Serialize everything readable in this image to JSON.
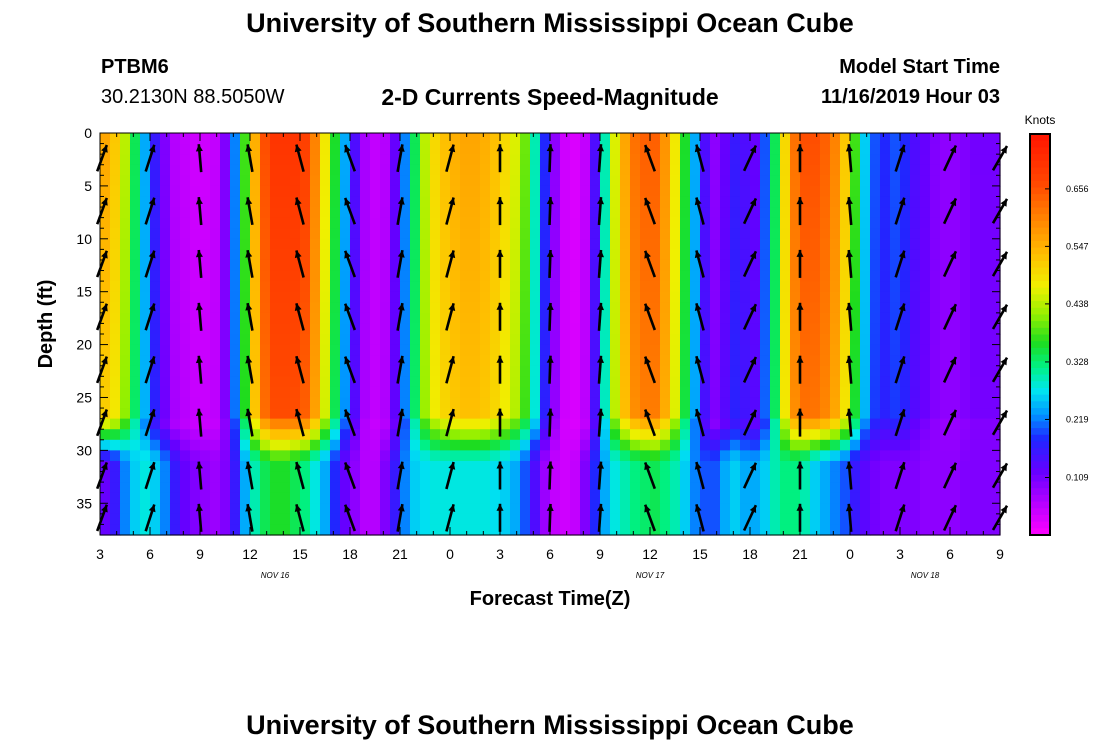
{
  "header": {
    "title": "University of Southern Mississippi Ocean Cube",
    "station": "PTBM6",
    "coords": "30.2130N 88.5050W",
    "subtitle": "2-D Currents Speed-Magnitude",
    "model_label": "Model Start Time",
    "model_time": "11/16/2019 Hour 03"
  },
  "footer": {
    "title": "University of Southern Mississippi Ocean Cube"
  },
  "chart_data": {
    "type": "heatmap",
    "title": "2-D Currents Speed-Magnitude",
    "xlabel": "Forecast Time(Z)",
    "ylabel": "Depth (ft)",
    "x_tick_labels": [
      "3",
      "6",
      "9",
      "12",
      "15",
      "18",
      "21",
      "0",
      "3",
      "6",
      "9",
      "12",
      "15",
      "18",
      "21",
      "0",
      "3",
      "6",
      "9"
    ],
    "x_range_hours": [
      0,
      54
    ],
    "date_labels": [
      {
        "label": "NOV 16",
        "hour": 10.5
      },
      {
        "label": "NOV 17",
        "hour": 33
      },
      {
        "label": "NOV 18",
        "hour": 49.5
      }
    ],
    "y_tick_labels": [
      "0",
      "5",
      "10",
      "15",
      "20",
      "25",
      "30",
      "35"
    ],
    "ylim": [
      0,
      38
    ],
    "colorbar": {
      "title": "Knots",
      "labels": [
        "0.656",
        "0.547",
        "0.438",
        "0.328",
        "0.219",
        "0.109"
      ],
      "label_values": [
        0.656,
        0.547,
        0.438,
        0.328,
        0.219,
        0.109
      ],
      "range": [
        0,
        0.76
      ]
    },
    "speed_profile": {
      "hours": [
        0,
        0.6,
        1.2,
        1.8,
        2.4,
        3.0,
        3.6,
        4.2,
        4.8,
        5.4,
        6.0,
        6.6,
        7.2,
        7.8,
        8.4,
        9.0,
        9.6,
        10.2,
        10.8,
        11.4,
        12.0,
        12.6,
        13.2,
        13.8,
        14.4,
        15.0,
        15.6,
        16.2,
        16.8,
        17.4,
        18.0,
        18.6,
        19.2,
        19.8,
        20.4,
        21.0,
        21.6,
        22.2,
        22.8,
        23.4,
        24.0,
        24.6,
        25.2,
        25.8,
        26.4,
        27.0,
        27.6,
        28.2,
        28.8,
        29.4,
        30.0,
        30.6,
        31.2,
        31.8,
        32.4,
        33.0,
        33.6,
        34.2,
        34.8,
        35.4,
        36.0,
        36.6,
        37.2,
        37.8,
        38.4,
        39.0,
        39.6,
        40.2,
        40.8,
        41.4,
        42.0,
        42.6,
        43.2,
        43.8,
        44.4,
        45.0,
        45.6,
        46.2,
        46.8,
        47.4,
        48.0,
        48.6,
        49.2,
        49.8,
        50.4,
        51.0,
        51.6,
        52.2,
        52.8,
        53.4
      ],
      "surface_knots": [
        0.56,
        0.52,
        0.44,
        0.34,
        0.24,
        0.16,
        0.1,
        0.06,
        0.05,
        0.04,
        0.04,
        0.05,
        0.1,
        0.22,
        0.38,
        0.55,
        0.66,
        0.7,
        0.7,
        0.7,
        0.68,
        0.6,
        0.48,
        0.36,
        0.24,
        0.14,
        0.07,
        0.05,
        0.06,
        0.12,
        0.22,
        0.34,
        0.44,
        0.5,
        0.53,
        0.55,
        0.56,
        0.56,
        0.55,
        0.53,
        0.5,
        0.46,
        0.4,
        0.3,
        0.18,
        0.09,
        0.04,
        0.03,
        0.05,
        0.14,
        0.3,
        0.46,
        0.56,
        0.62,
        0.64,
        0.64,
        0.58,
        0.48,
        0.36,
        0.24,
        0.14,
        0.09,
        0.12,
        0.16,
        0.14,
        0.12,
        0.2,
        0.34,
        0.5,
        0.62,
        0.66,
        0.66,
        0.64,
        0.6,
        0.52,
        0.38,
        0.26,
        0.2,
        0.18,
        0.2,
        0.18,
        0.14,
        0.12,
        0.1,
        0.09,
        0.09,
        0.1,
        0.11,
        0.11,
        0.11
      ],
      "bottom_knots": [
        0.12,
        0.16,
        0.22,
        0.26,
        0.28,
        0.26,
        0.22,
        0.16,
        0.12,
        0.1,
        0.09,
        0.08,
        0.1,
        0.16,
        0.24,
        0.3,
        0.34,
        0.36,
        0.36,
        0.34,
        0.32,
        0.28,
        0.24,
        0.18,
        0.12,
        0.09,
        0.06,
        0.06,
        0.1,
        0.16,
        0.22,
        0.26,
        0.27,
        0.28,
        0.28,
        0.28,
        0.28,
        0.28,
        0.28,
        0.27,
        0.26,
        0.24,
        0.2,
        0.14,
        0.08,
        0.05,
        0.04,
        0.05,
        0.1,
        0.18,
        0.24,
        0.28,
        0.3,
        0.32,
        0.33,
        0.34,
        0.32,
        0.3,
        0.26,
        0.22,
        0.2,
        0.2,
        0.24,
        0.26,
        0.24,
        0.24,
        0.26,
        0.3,
        0.32,
        0.32,
        0.3,
        0.26,
        0.24,
        0.22,
        0.2,
        0.16,
        0.13,
        0.11,
        0.1,
        0.1,
        0.1,
        0.1,
        0.09,
        0.09,
        0.09,
        0.09,
        0.1,
        0.1,
        0.1,
        0.1
      ],
      "pycnocline_depth_ft": 29
    },
    "vector_columns_hours": [
      0,
      3,
      6,
      9,
      12,
      15,
      18,
      21,
      24,
      27,
      30,
      33,
      36,
      39,
      42,
      45,
      48,
      51,
      54
    ],
    "vector_depths_ft": [
      2,
      7,
      12,
      17,
      22,
      27,
      32,
      36
    ],
    "vector_columns_angle_deg": [
      20,
      18,
      -5,
      -10,
      -15,
      -20,
      10,
      15,
      0,
      2,
      4,
      -20,
      -15,
      25,
      0,
      -5,
      18,
      25,
      30
    ]
  }
}
